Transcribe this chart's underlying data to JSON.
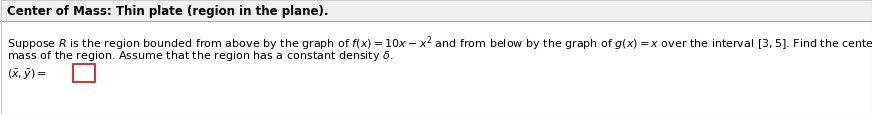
{
  "title": "Center of Mass: Thin plate (region in the plane).",
  "line1": "Suppose $R$ is the region bounded from above by the graph of $f(x) = 10x - x^2$ and from below by the graph of $g(x) = x$ over the interval $[3, 5]$. Find the center of",
  "line2": "mass of the region. Assume that the region has a constant density $\\delta$.",
  "line3_prefix": "$(\\bar{x}, \\bar{y}) =$",
  "bg_color": "#f5f5f5",
  "title_bg_color": "#f0f0f0",
  "body_bg_color": "#ffffff",
  "title_color": "#000000",
  "body_color": "#000000",
  "box_edge_color": "#cc2222",
  "separator_color": "#aaaaaa",
  "font_size_title": 8.5,
  "font_size_body": 8.0
}
